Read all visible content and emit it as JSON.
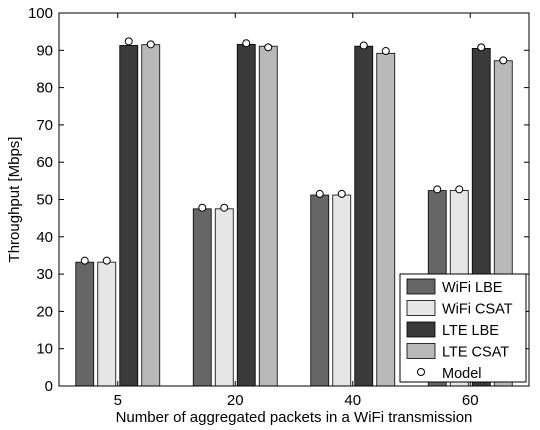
{
  "chart_data": {
    "type": "bar",
    "title": "",
    "xlabel": "Number of aggregated packets in a WiFi transmission",
    "ylabel": "Throughput [Mbps]",
    "ylim": [
      0,
      100
    ],
    "yticks": [
      "0",
      "10",
      "20",
      "30",
      "40",
      "50",
      "60",
      "70",
      "80",
      "90",
      "100"
    ],
    "categories": [
      "5",
      "20",
      "40",
      "60"
    ],
    "series": [
      {
        "name": "WiFi LBE",
        "color": "#666666",
        "values": [
          33.2,
          47.5,
          51.2,
          52.4
        ]
      },
      {
        "name": "WiFi CSAT",
        "color": "#e6e6e6",
        "values": [
          33.2,
          47.5,
          51.2,
          52.4
        ]
      },
      {
        "name": "LTE LBE",
        "color": "#3a3a3a",
        "values": [
          91.3,
          91.6,
          91.1,
          90.5
        ]
      },
      {
        "name": "LTE CSAT",
        "color": "#b9b9b9",
        "values": [
          91.5,
          91.1,
          89.2,
          87.2
        ]
      }
    ],
    "model": {
      "name": "Model",
      "values": [
        [
          33.6,
          47.8,
          51.5,
          52.7
        ],
        [
          33.6,
          47.8,
          51.5,
          52.7
        ],
        [
          92.4,
          91.9,
          91.3,
          90.8
        ],
        [
          91.6,
          90.8,
          89.8,
          87.3
        ]
      ]
    },
    "legend": "bottom-right",
    "grid": false
  }
}
